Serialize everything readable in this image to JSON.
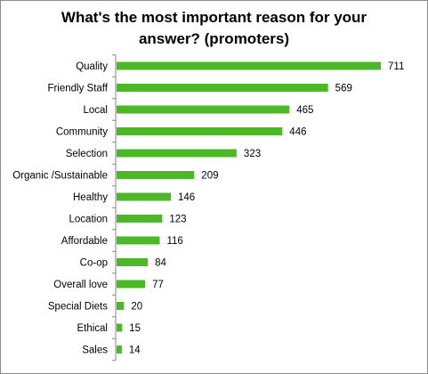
{
  "chart_data": {
    "type": "bar",
    "orientation": "horizontal",
    "title_line1": "What's the most important reason for your",
    "title_line2": "answer? (promoters)",
    "categories": [
      "Quality",
      "Friendly Staff",
      "Local",
      "Community",
      "Selection",
      "Organic /Sustainable",
      "Healthy",
      "Location",
      "Affordable",
      "Co-op",
      "Overall love",
      "Special Diets",
      "Ethical",
      "Sales"
    ],
    "values": [
      711,
      569,
      465,
      446,
      323,
      209,
      146,
      123,
      116,
      84,
      77,
      20,
      15,
      14
    ],
    "data_labels": [
      "711",
      "569",
      "465",
      "446",
      "323",
      "209",
      "146",
      "123",
      "116",
      "84",
      "77",
      "20",
      "15",
      "14"
    ],
    "bar_color": "#4cb828",
    "xlim": [
      0,
      711
    ],
    "grid": false,
    "legend": "none"
  }
}
